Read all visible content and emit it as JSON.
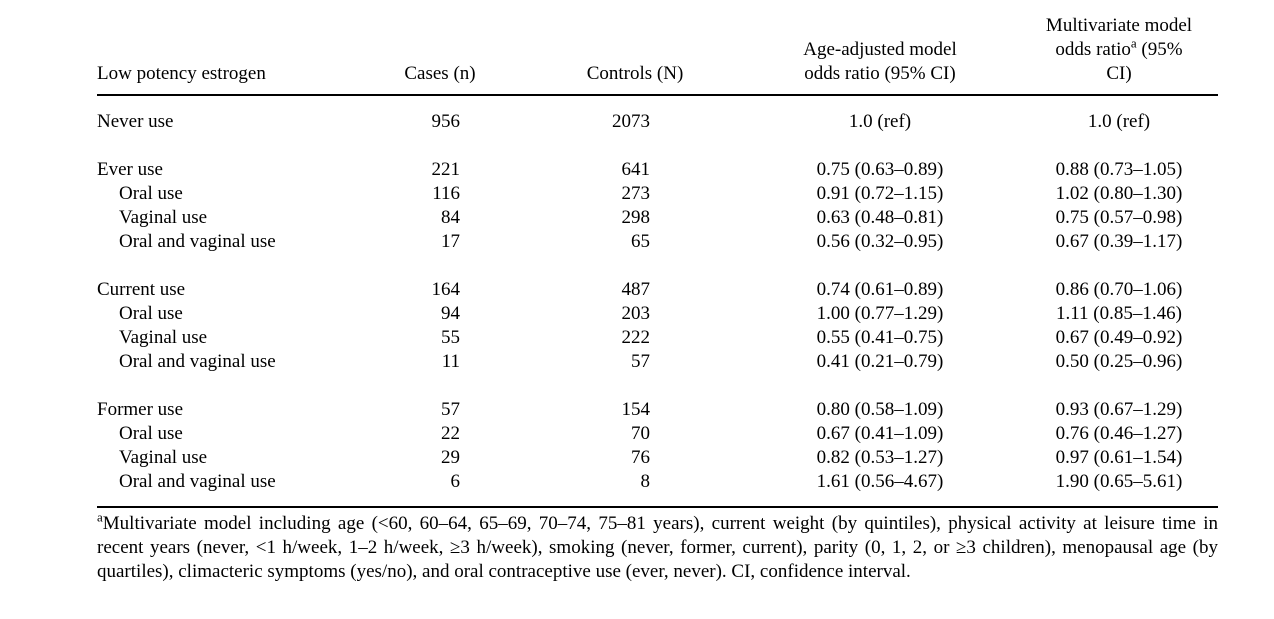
{
  "colors": {
    "background": "#ffffff",
    "text": "#000000",
    "rule": "#000000"
  },
  "table": {
    "header": {
      "col1": "Low potency estrogen",
      "col2": "Cases (n)",
      "col3": "Controls (N)",
      "col4_line1": "Age-adjusted model",
      "col4_line2": "odds ratio (95% CI)",
      "col5_line1": "Multivariate model",
      "col5_line2_pre": "odds ratio",
      "col5_sup": "a",
      "col5_line2_post": " (95%",
      "col5_line3": "CI)"
    },
    "rows": [
      {
        "label": "Never use",
        "indent": false,
        "cases": "956",
        "controls": "2073",
        "age_adjusted": "1.0 (ref)",
        "multivariate": "1.0 (ref)"
      },
      {
        "label": "Ever use",
        "indent": false,
        "cases": "221",
        "controls": "641",
        "age_adjusted": "0.75 (0.63–0.89)",
        "multivariate": "0.88 (0.73–1.05)"
      },
      {
        "label": "Oral use",
        "indent": true,
        "cases": "116",
        "controls": "273",
        "age_adjusted": "0.91 (0.72–1.15)",
        "multivariate": "1.02 (0.80–1.30)"
      },
      {
        "label": "Vaginal use",
        "indent": true,
        "cases": "84",
        "controls": "298",
        "age_adjusted": "0.63 (0.48–0.81)",
        "multivariate": "0.75 (0.57–0.98)"
      },
      {
        "label": "Oral and vaginal use",
        "indent": true,
        "cases": "17",
        "controls": "65",
        "age_adjusted": "0.56 (0.32–0.95)",
        "multivariate": "0.67 (0.39–1.17)"
      },
      {
        "label": "Current use",
        "indent": false,
        "cases": "164",
        "controls": "487",
        "age_adjusted": "0.74 (0.61–0.89)",
        "multivariate": "0.86 (0.70–1.06)"
      },
      {
        "label": "Oral use",
        "indent": true,
        "cases": "94",
        "controls": "203",
        "age_adjusted": "1.00 (0.77–1.29)",
        "multivariate": "1.11 (0.85–1.46)"
      },
      {
        "label": "Vaginal use",
        "indent": true,
        "cases": "55",
        "controls": "222",
        "age_adjusted": "0.55 (0.41–0.75)",
        "multivariate": "0.67 (0.49–0.92)"
      },
      {
        "label": "Oral and vaginal use",
        "indent": true,
        "cases": "11",
        "controls": "57",
        "age_adjusted": "0.41 (0.21–0.79)",
        "multivariate": "0.50 (0.25–0.96)"
      },
      {
        "label": "Former use",
        "indent": false,
        "cases": "57",
        "controls": "154",
        "age_adjusted": "0.80 (0.58–1.09)",
        "multivariate": "0.93 (0.67–1.29)"
      },
      {
        "label": "Oral use",
        "indent": true,
        "cases": "22",
        "controls": "70",
        "age_adjusted": "0.67 (0.41–1.09)",
        "multivariate": "0.76 (0.46–1.27)"
      },
      {
        "label": "Vaginal use",
        "indent": true,
        "cases": "29",
        "controls": "76",
        "age_adjusted": "0.82 (0.53–1.27)",
        "multivariate": "0.97 (0.61–1.54)"
      },
      {
        "label": "Oral and vaginal use",
        "indent": true,
        "cases": "6",
        "controls": "8",
        "age_adjusted": "1.61 (0.56–4.67)",
        "multivariate": "1.90 (0.65–5.61)"
      }
    ]
  },
  "footnote": {
    "marker": "a",
    "text": "Multivariate model including age (<60, 60–64, 65–69, 70–74, 75–81 years), current weight (by quintiles), physical activity at leisure time in recent years (never, <1 h/week, 1–2 h/week, ≥3 h/week), smoking (never, former, current), parity (0, 1, 2, or ≥3 children), menopausal age (by quartiles), climacteric symptoms (yes/no), and oral contraceptive use (ever, never). CI, confidence interval."
  }
}
